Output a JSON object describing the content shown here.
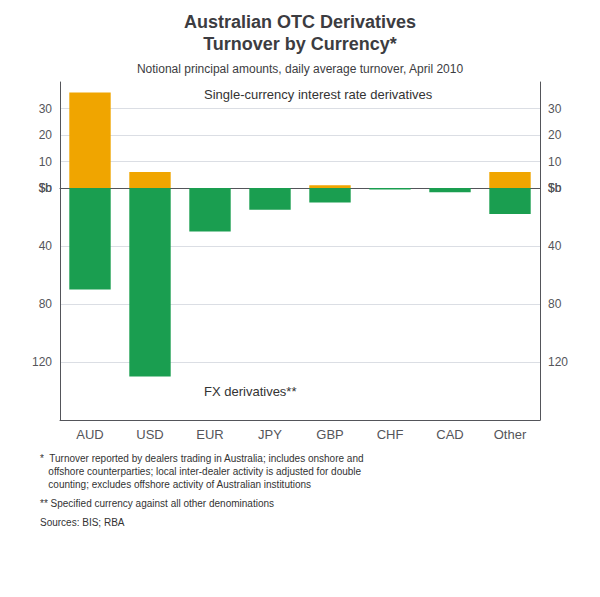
{
  "chart_data": [
    {
      "type": "bar",
      "title": "Australian OTC Derivatives\nTurnover by Currency*",
      "subtitle": "Notional principal amounts, daily average turnover, April 2010",
      "annotation": "Single-currency interest rate derivatives",
      "categories": [
        "AUD",
        "USD",
        "EUR",
        "JPY",
        "GBP",
        "CHF",
        "CAD",
        "Other"
      ],
      "values": [
        36,
        6,
        0,
        0,
        1,
        0,
        0,
        6
      ],
      "color": "#F0A500",
      "ylim": [
        0,
        40
      ],
      "yticks": [
        {
          "value": 0,
          "label": "$b"
        },
        10,
        20,
        30
      ],
      "grid": true
    },
    {
      "type": "bar",
      "annotation": "FX derivatives**",
      "categories": [
        "AUD",
        "USD",
        "EUR",
        "JPY",
        "GBP",
        "CHF",
        "CAD",
        "Other"
      ],
      "values": [
        70,
        130,
        30,
        15,
        10,
        1,
        3,
        18
      ],
      "color": "#1A9E50",
      "ylim": [
        0,
        160
      ],
      "yticks": [
        {
          "value": 0,
          "label": "$b"
        },
        40,
        80,
        120
      ],
      "grid": true,
      "footnotes": [
        "*  Turnover reported by dealers trading in Australia; includes onshore and\n   offshore counterparties; local inter-dealer activity is adjusted for double\n   counting; excludes offshore activity of Australian institutions",
        "** Specified currency against all other denominations",
        "Sources: BIS; RBA"
      ]
    }
  ]
}
